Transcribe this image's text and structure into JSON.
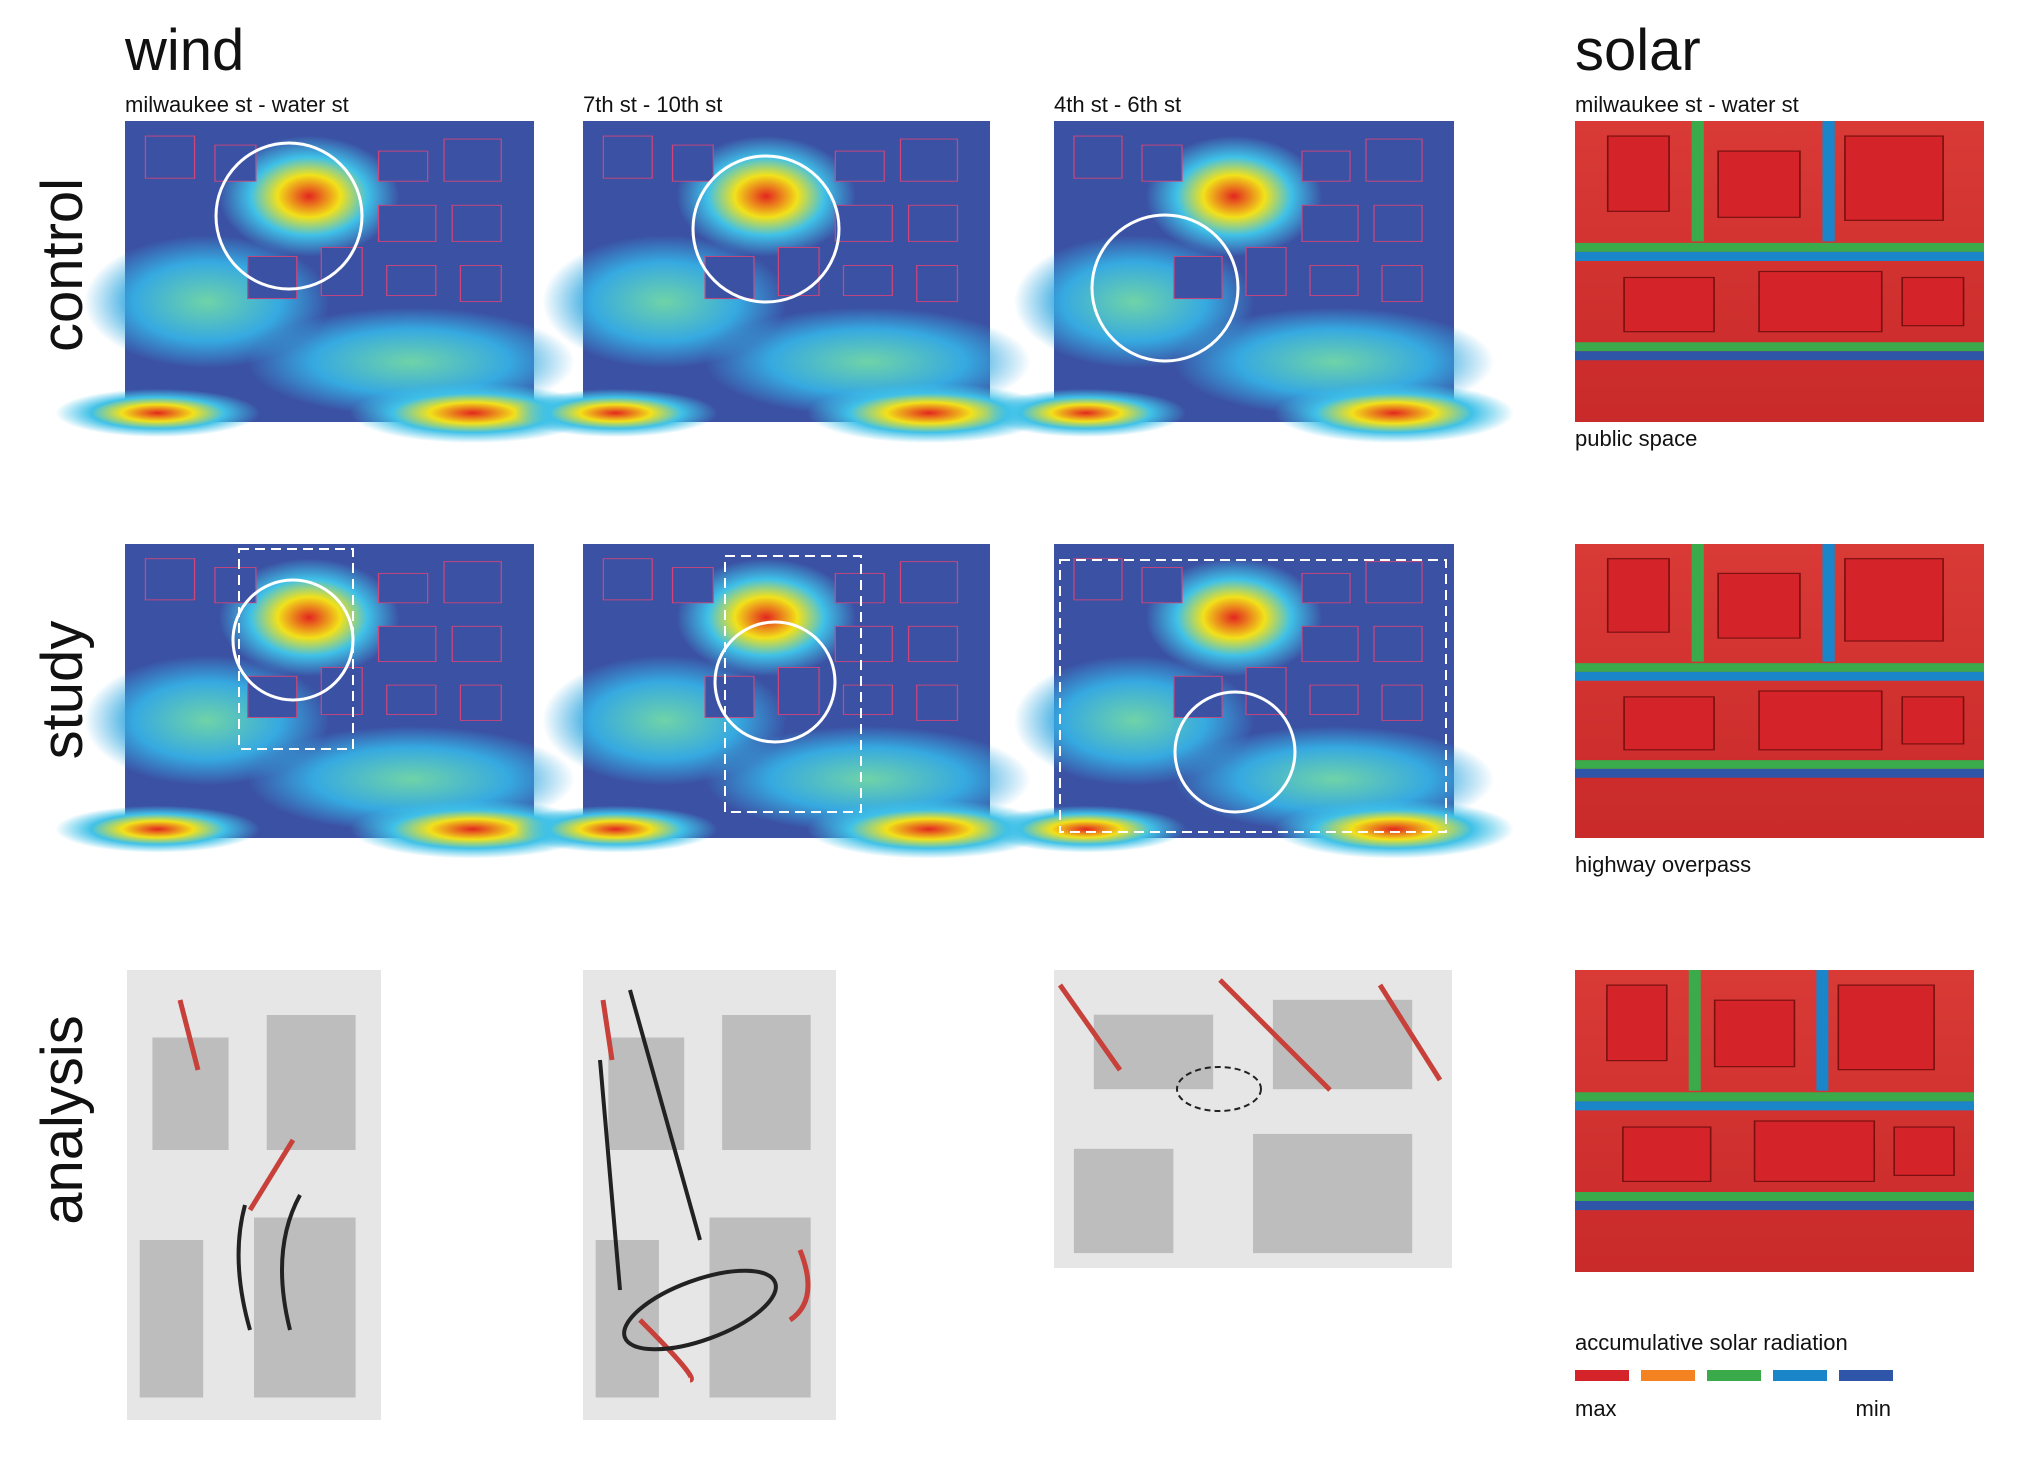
{
  "headers": {
    "wind": "wind",
    "solar": "solar"
  },
  "subtitles": [
    "milwaukee st - water st",
    "7th st - 10th st",
    "4th st - 6th st",
    "milwaukee st - water st"
  ],
  "row_labels": [
    "control",
    "study",
    "analysis"
  ],
  "solar_captions": [
    "public space",
    "highway overpass"
  ],
  "legend": {
    "title": "accumulative solar radiation",
    "colors": [
      "#d4242a",
      "#f58220",
      "#3aaa4a",
      "#1a85c8",
      "#2e55a8"
    ],
    "min_label": "min",
    "max_label": "max"
  }
}
